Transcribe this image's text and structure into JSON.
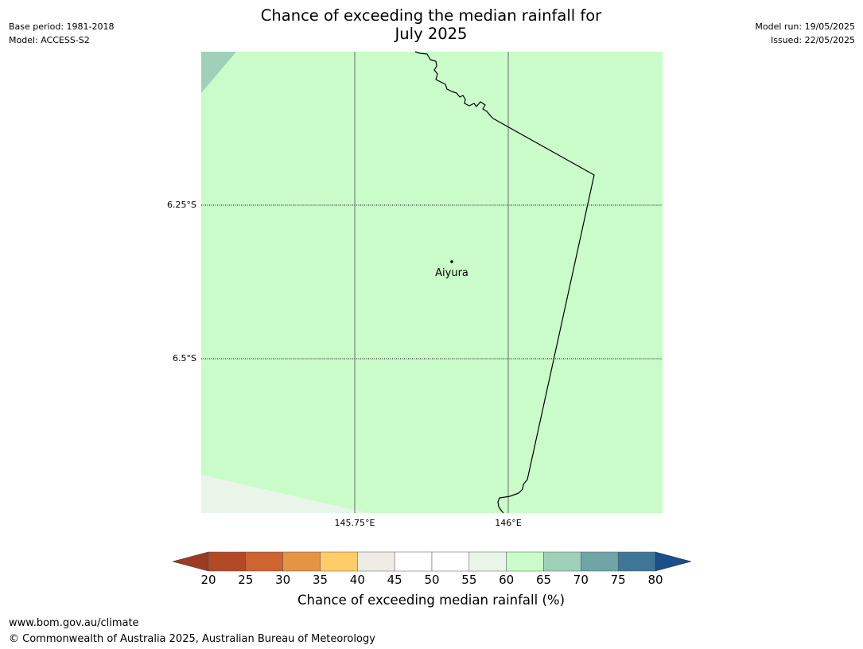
{
  "title": {
    "line1": "Chance of exceeding the median rainfall for",
    "line2": "July 2025"
  },
  "meta_left": {
    "base_period": "Base period: 1981-2018",
    "model": "Model: ACCESS-S2"
  },
  "meta_right": {
    "model_run": "Model run: 19/05/2025",
    "issued": "Issued: 22/05/2025"
  },
  "map": {
    "background_color": "#c9fcc9",
    "corner_colors": {
      "top_left": "#9fd1ba",
      "bottom_left": "#eaf5ea"
    },
    "lat_labels": [
      "6.25°S",
      "6.5°S"
    ],
    "lon_labels": [
      "145.75°E",
      "146°E"
    ],
    "place": {
      "name": "Aiyura"
    }
  },
  "colorbar": {
    "ticks": [
      "20",
      "25",
      "30",
      "35",
      "40",
      "45",
      "50",
      "55",
      "60",
      "65",
      "70",
      "75",
      "80"
    ],
    "low_extend_color": "#9a3b22",
    "high_extend_color": "#17508a",
    "segment_colors": [
      "#b24a25",
      "#cd6431",
      "#e39544",
      "#fecc68",
      "#efebe6",
      "#ffffff",
      "#ffffff",
      "#eaf5ea",
      "#c9fcc9",
      "#9fd1ba",
      "#6fa5a7",
      "#3f7697"
    ],
    "label": "Chance of exceeding median rainfall (%)"
  },
  "footer": {
    "website": "www.bom.gov.au/climate",
    "copyright": "© Commonwealth of Australia 2025, Australian Bureau of Meteorology"
  }
}
